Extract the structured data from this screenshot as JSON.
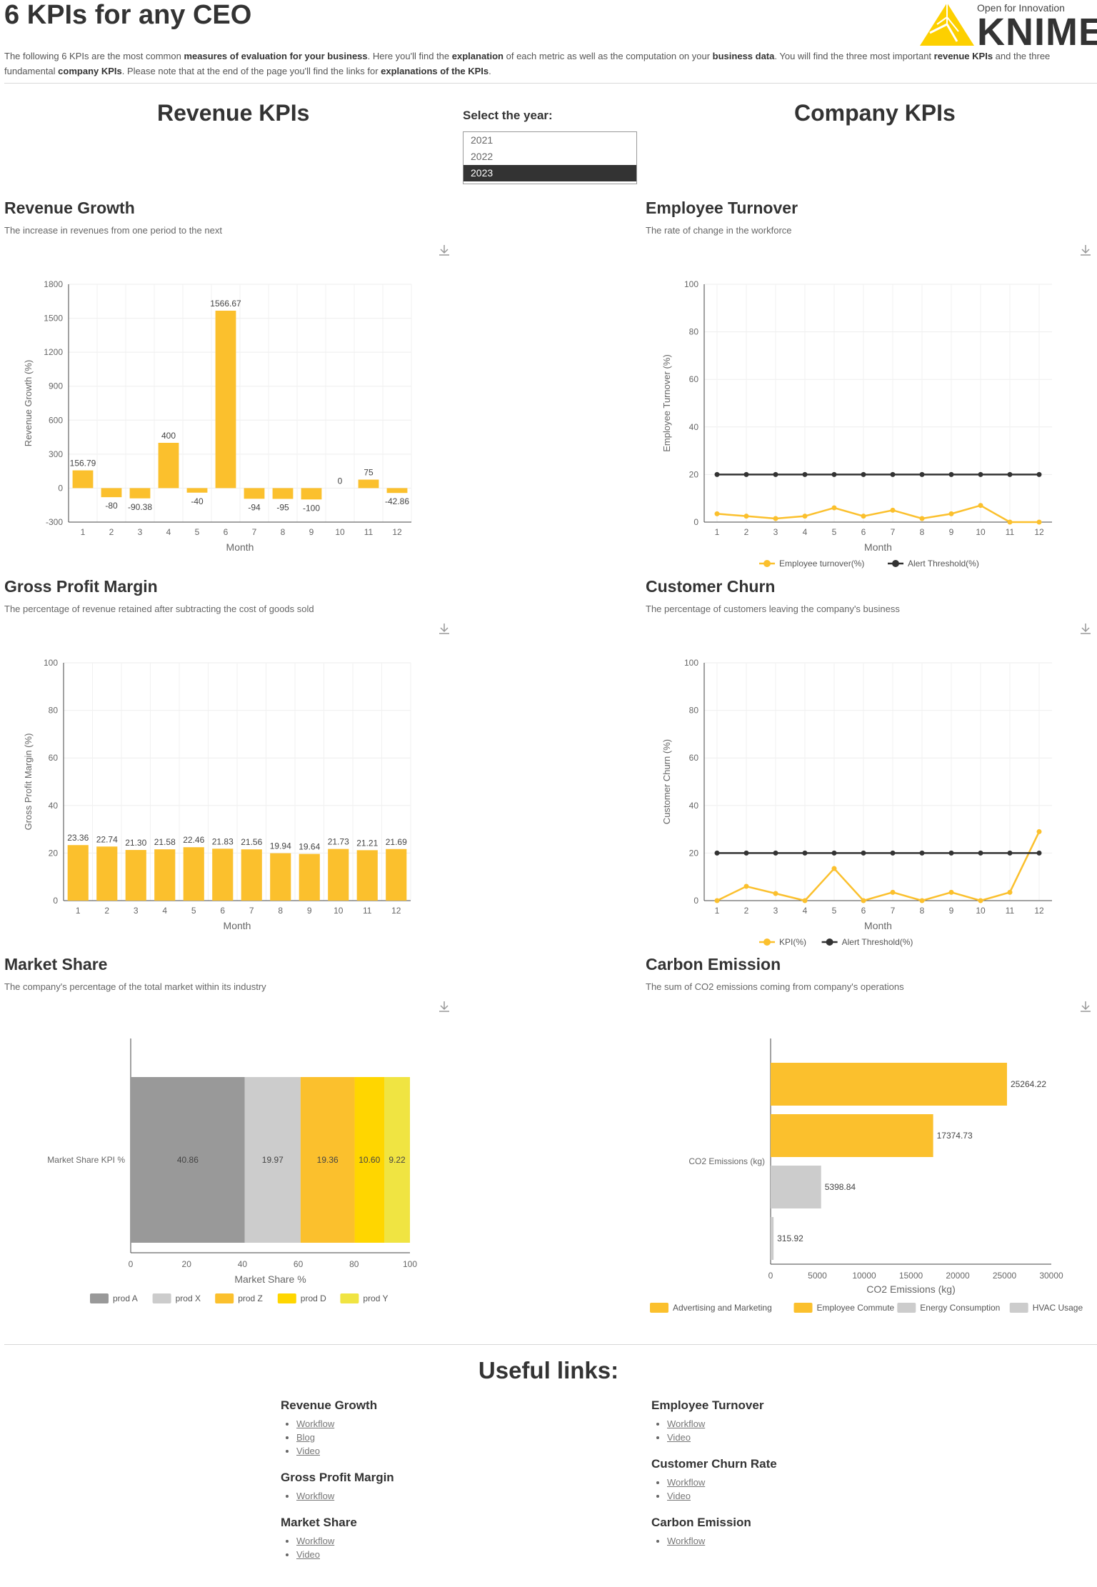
{
  "header": {
    "title": "6 KPIs for any CEO",
    "logo_tagline": "Open for Innovation",
    "logo_word": "KNIME",
    "intro": [
      {
        "t": "The following 6 KPIs are the most common ",
        "b": false
      },
      {
        "t": "measures of evaluation for your business",
        "b": true
      },
      {
        "t": ". Here you'll find the ",
        "b": false
      },
      {
        "t": "explanation",
        "b": true
      },
      {
        "t": " of each metric as well as the computation on your ",
        "b": false
      },
      {
        "t": "business data",
        "b": true
      },
      {
        "t": ". You will find the three most important ",
        "b": false
      },
      {
        "t": "revenue KPIs",
        "b": true
      },
      {
        "t": " and the three fundamental ",
        "b": false
      },
      {
        "t": "company KPIs",
        "b": true
      },
      {
        "t": ". Please note that at the end of the page you'll find the links for ",
        "b": false
      },
      {
        "t": "explanations of the KPIs",
        "b": true
      },
      {
        "t": ".",
        "b": false
      }
    ]
  },
  "sections": {
    "revenue": "Revenue KPIs",
    "company": "Company KPIs"
  },
  "year_select": {
    "label": "Select the year:",
    "options": [
      "2021",
      "2022",
      "2023"
    ],
    "selected": "2023"
  },
  "kpis": {
    "revenue_growth": {
      "title": "Revenue Growth",
      "desc": "The increase in revenues from one period to the next"
    },
    "gross_profit_margin": {
      "title": "Gross Profit Margin",
      "desc": "The percentage of revenue retained after subtracting the cost of goods sold"
    },
    "market_share": {
      "title": "Market Share",
      "desc": "The company's percentage of the total market within its industry"
    },
    "employee_turnover": {
      "title": "Employee Turnover",
      "desc": "The rate of change in the workforce"
    },
    "customer_churn": {
      "title": "Customer Churn",
      "desc": "The percentage of customers leaving the company's business"
    },
    "carbon_emission": {
      "title": "Carbon Emission",
      "desc": "The sum of CO2 emissions coming from company's operations"
    }
  },
  "colors": {
    "yellow": "#fbc02d",
    "yellow2": "#ffd600",
    "yellow3": "#f0e442",
    "grey_dark": "#999999",
    "grey_light": "#cccccc",
    "black": "#333333"
  },
  "chart_data": [
    {
      "id": "revenue_growth",
      "type": "bar",
      "categories": [
        "1",
        "2",
        "3",
        "4",
        "5",
        "6",
        "7",
        "8",
        "9",
        "10",
        "11",
        "12"
      ],
      "values": [
        156.79,
        -80,
        -90.38,
        400,
        -40,
        1566.67,
        -94,
        -95,
        -100,
        0,
        75,
        -42.86
      ],
      "labels": [
        "156.79",
        "-80",
        "-90.38",
        "400",
        "-40",
        "1566.67",
        "-94",
        "-95",
        "-100",
        "0",
        "75",
        "-42.86"
      ],
      "xlabel": "Month",
      "ylabel": "Revenue Growth (%)",
      "ylim": [
        -300,
        1800
      ],
      "yticks": [
        -300,
        0,
        300,
        600,
        900,
        1200,
        1500,
        1800
      ],
      "grid": true
    },
    {
      "id": "gross_profit_margin",
      "type": "bar",
      "categories": [
        "1",
        "2",
        "3",
        "4",
        "5",
        "6",
        "7",
        "8",
        "9",
        "10",
        "11",
        "12"
      ],
      "values": [
        23.36,
        22.74,
        21.3,
        21.58,
        22.46,
        21.83,
        21.56,
        19.94,
        19.64,
        21.73,
        21.21,
        21.69
      ],
      "labels": [
        "23.36",
        "22.74",
        "21.30",
        "21.58",
        "22.46",
        "21.83",
        "21.56",
        "19.94",
        "19.64",
        "21.73",
        "21.21",
        "21.69"
      ],
      "xlabel": "Month",
      "ylabel": "Gross Profit Margin (%)",
      "ylim": [
        0,
        100
      ],
      "yticks": [
        0,
        20,
        40,
        60,
        80,
        100
      ],
      "grid": true
    },
    {
      "id": "market_share",
      "type": "bar",
      "orientation": "horizontal-stacked",
      "category": "Market Share KPI %",
      "series": [
        {
          "name": "prod A",
          "value": 40.86,
          "label": "40.86"
        },
        {
          "name": "prod X",
          "value": 19.97,
          "label": "19.97"
        },
        {
          "name": "prod Z",
          "value": 19.36,
          "label": "19.36"
        },
        {
          "name": "prod D",
          "value": 10.6,
          "label": "10.60"
        },
        {
          "name": "prod Y",
          "value": 9.22,
          "label": "9.22"
        }
      ],
      "xlabel": "Market Share %",
      "xlim": [
        0,
        100
      ],
      "xticks": [
        0,
        20,
        40,
        60,
        80,
        100
      ],
      "legend": "bottom"
    },
    {
      "id": "employee_turnover",
      "type": "line",
      "x": [
        1,
        2,
        3,
        4,
        5,
        6,
        7,
        8,
        9,
        10,
        11,
        12
      ],
      "series": [
        {
          "name": "Employee turnover(%)",
          "values": [
            3.5,
            2.5,
            1.5,
            2.5,
            6,
            2.5,
            5,
            1.5,
            3.5,
            7,
            0,
            0
          ]
        },
        {
          "name": "Alert Threshold(%)",
          "values": [
            20,
            20,
            20,
            20,
            20,
            20,
            20,
            20,
            20,
            20,
            20,
            20
          ]
        }
      ],
      "xlabel": "Month",
      "ylabel": "Employee Turnover (%)",
      "ylim": [
        0,
        100
      ],
      "yticks": [
        0,
        20,
        40,
        60,
        80,
        100
      ],
      "legend": "bottom",
      "grid": true
    },
    {
      "id": "customer_churn",
      "type": "line",
      "x": [
        1,
        2,
        3,
        4,
        5,
        6,
        7,
        8,
        9,
        10,
        11,
        12
      ],
      "series": [
        {
          "name": "KPI(%)",
          "values": [
            0,
            6,
            3,
            0,
            13.5,
            0,
            3.5,
            0,
            3.5,
            0,
            3.5,
            29
          ]
        },
        {
          "name": "Alert Threshold(%)",
          "values": [
            20,
            20,
            20,
            20,
            20,
            20,
            20,
            20,
            20,
            20,
            20,
            20
          ]
        }
      ],
      "xlabel": "Month",
      "ylabel": "Customer Churn (%)",
      "ylim": [
        0,
        100
      ],
      "yticks": [
        0,
        20,
        40,
        60,
        80,
        100
      ],
      "legend": "bottom",
      "grid": true
    },
    {
      "id": "carbon_emission",
      "type": "bar",
      "orientation": "horizontal",
      "category": "CO2 Emissions (kg)",
      "series": [
        {
          "name": "Advertising and Marketing",
          "value": 25264.22,
          "label": "25264.22"
        },
        {
          "name": "Employee Commute",
          "value": 17374.73,
          "label": "17374.73"
        },
        {
          "name": "Energy Consumption",
          "value": 5398.84,
          "label": "5398.84"
        },
        {
          "name": "HVAC Usage",
          "value": 315.92,
          "label": "315.92"
        }
      ],
      "xlabel": "CO2 Emissions (kg)",
      "xlim": [
        0,
        30000
      ],
      "xticks": [
        0,
        5000,
        10000,
        15000,
        20000,
        25000,
        30000
      ],
      "legend": "bottom"
    }
  ],
  "links": {
    "title": "Useful links:",
    "groups": [
      {
        "title": "Revenue Growth",
        "items": [
          "Workflow",
          "Blog",
          "Video"
        ]
      },
      {
        "title": "Gross Profit Margin",
        "items": [
          "Workflow"
        ]
      },
      {
        "title": "Market Share",
        "items": [
          "Workflow",
          "Video"
        ]
      },
      {
        "title": "Employee Turnover",
        "items": [
          "Workflow",
          "Video"
        ]
      },
      {
        "title": "Customer Churn Rate",
        "items": [
          "Workflow",
          "Video"
        ]
      },
      {
        "title": "Carbon Emission",
        "items": [
          "Workflow"
        ]
      }
    ]
  }
}
